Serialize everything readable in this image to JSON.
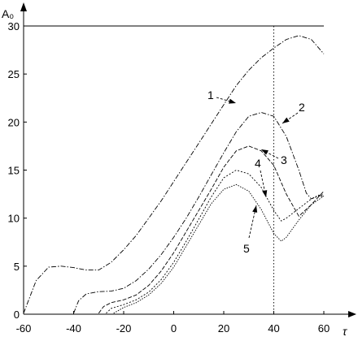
{
  "chart_data": {
    "type": "line",
    "title": "",
    "xlabel": "τ",
    "ylabel": "A₀",
    "xlim": [
      -60,
      60
    ],
    "ylim": [
      0,
      30
    ],
    "xticks": [
      -60,
      -40,
      -20,
      0,
      20,
      40,
      60
    ],
    "yticks": [
      0,
      5,
      10,
      15,
      20,
      25,
      30
    ],
    "grid": false,
    "reference_line": {
      "x": 40,
      "style": "dotted"
    },
    "series": [
      {
        "name": "1",
        "dash": "6 2 1.5 2",
        "x": [
          -60,
          -55,
          -50,
          -45,
          -40,
          -35,
          -30,
          -25,
          -20,
          -15,
          -10,
          -5,
          0,
          5,
          10,
          15,
          20,
          25,
          30,
          35,
          40,
          45,
          50,
          55,
          60
        ],
        "y": [
          0.1,
          3.5,
          4.9,
          5.0,
          4.85,
          4.6,
          4.6,
          5.4,
          6.7,
          8.2,
          10.0,
          11.8,
          13.8,
          15.8,
          17.8,
          19.8,
          21.8,
          23.8,
          25.4,
          26.7,
          27.7,
          28.6,
          29.0,
          28.6,
          27.1
        ]
      },
      {
        "name": "2",
        "dash": "6 2 1.5 2",
        "x": [
          -40,
          -38,
          -35,
          -30,
          -25,
          -20,
          -15,
          -10,
          -5,
          0,
          5,
          10,
          15,
          20,
          25,
          30,
          35,
          40,
          45,
          50,
          53,
          55,
          58,
          60
        ],
        "y": [
          0.1,
          1.4,
          2.1,
          2.35,
          2.4,
          2.7,
          3.5,
          4.7,
          6.2,
          8.0,
          10.0,
          12.2,
          14.5,
          16.8,
          19.0,
          20.6,
          21.0,
          20.6,
          18.5,
          15.0,
          12.6,
          12.0,
          12.4,
          12.2
        ]
      },
      {
        "name": "3",
        "dash": "5 2",
        "x": [
          -30,
          -28,
          -25,
          -20,
          -15,
          -10,
          -5,
          0,
          5,
          10,
          15,
          20,
          25,
          30,
          35,
          40,
          45,
          50,
          55,
          60
        ],
        "y": [
          0.1,
          0.8,
          1.2,
          1.5,
          2.0,
          3.0,
          4.5,
          6.4,
          8.6,
          10.8,
          13.0,
          15.3,
          17.0,
          17.5,
          17.0,
          15.5,
          12.5,
          10.2,
          11.4,
          12.8
        ]
      },
      {
        "name": "4",
        "dash": "2 2",
        "x": [
          -27,
          -25,
          -20,
          -15,
          -10,
          -5,
          0,
          5,
          10,
          15,
          20,
          25,
          30,
          35,
          40,
          43,
          45,
          50,
          55,
          60
        ],
        "y": [
          0.1,
          0.6,
          1.0,
          1.5,
          2.3,
          3.6,
          5.4,
          7.6,
          9.9,
          12.2,
          14.2,
          15.0,
          14.6,
          13.2,
          10.8,
          9.7,
          10.0,
          11.0,
          12.0,
          12.5
        ]
      },
      {
        "name": "5",
        "dash": "1.5 1.5",
        "x": [
          -24,
          -22,
          -20,
          -15,
          -10,
          -5,
          0,
          5,
          10,
          15,
          20,
          25,
          30,
          35,
          40,
          43,
          45,
          50,
          55,
          60
        ],
        "y": [
          0.1,
          0.4,
          0.7,
          1.2,
          2.0,
          3.2,
          4.9,
          7.1,
          9.3,
          11.5,
          13.0,
          13.5,
          12.8,
          10.9,
          8.4,
          7.6,
          8.0,
          9.8,
          11.4,
          12.3
        ]
      }
    ],
    "annotations": [
      {
        "text": "1",
        "series": "1"
      },
      {
        "text": "2",
        "series": "2"
      },
      {
        "text": "3",
        "series": "3"
      },
      {
        "text": "4",
        "series": "4"
      },
      {
        "text": "5",
        "series": "5"
      }
    ]
  }
}
